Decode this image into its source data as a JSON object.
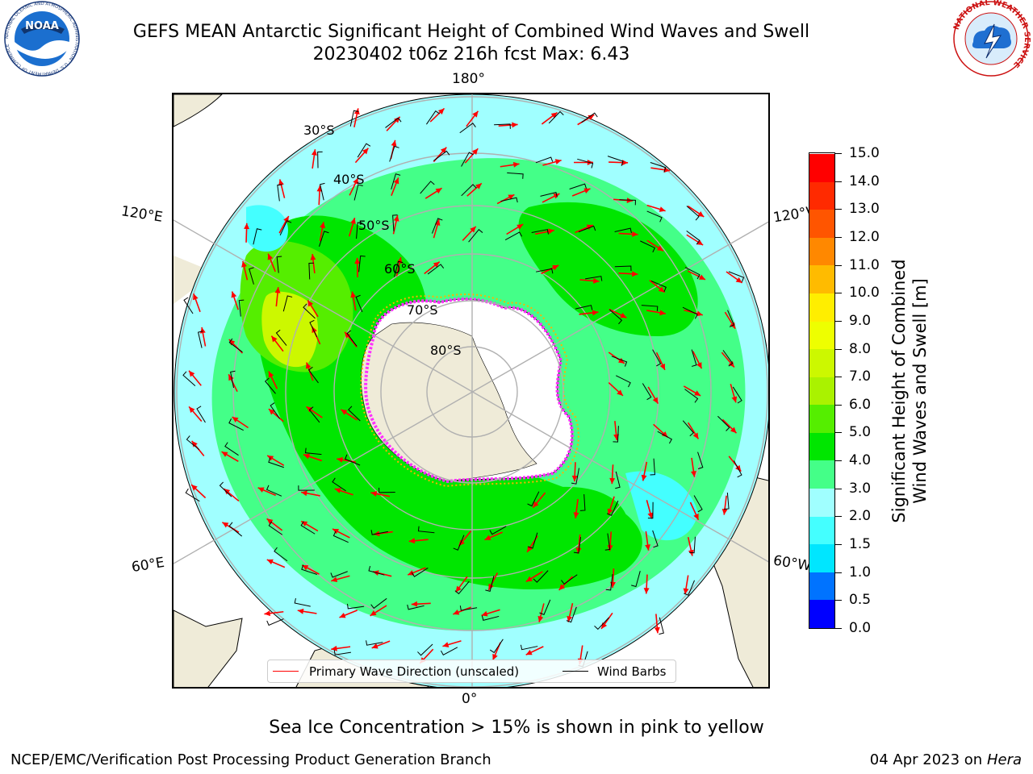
{
  "header": {
    "title_line1": "GEFS MEAN Antarctic Significant Height of Combined Wind Waves and Swell",
    "title_line2": "20230402 t06z 216h fcst   Max: 6.43"
  },
  "logos": {
    "noaa": {
      "text": "NOAA",
      "ring_text": "NATIONAL OCEANIC AND ATMOSPHERIC ADMINISTRATION · U.S. DEPARTMENT OF COMMERCE"
    },
    "nws": {
      "ring_text": "NATIONAL WEATHER SERVICE"
    }
  },
  "map": {
    "projection": "south-polar-stereographic",
    "longitude_labels": {
      "top": "180°",
      "bottom": "0°",
      "left_upper": "120°E",
      "left_lower": "60°E",
      "right_upper": "120°W",
      "right_lower": "60°W"
    },
    "latitude_labels": [
      "30°S",
      "40°S",
      "50°S",
      "60°S",
      "70°S",
      "80°S"
    ],
    "colors": {
      "land": "#efebd8",
      "antarctica": "#ffffff",
      "ocean_outside": "#ffffff",
      "gridline": "#b0b0b0",
      "sea_ice_pink": "#ff30ff",
      "sea_ice_yellow": "#ffb000",
      "arrow": "#ff0000",
      "barb": "#000000"
    }
  },
  "legend": {
    "primary_wave": {
      "label": "Primary Wave Direction (unscaled)",
      "color": "#ff0000"
    },
    "wind_barbs": {
      "label": "Wind Barbs",
      "color": "#000000"
    }
  },
  "colorbar": {
    "title_line1": "Significant Height of Combined",
    "title_line2": "Wind Waves and Swell [m]",
    "tick_labels": [
      "0.0",
      "0.5",
      "1.0",
      "1.5",
      "2.0",
      "3.0",
      "4.0",
      "5.0",
      "6.0",
      "7.0",
      "8.0",
      "9.0",
      "10.0",
      "11.0",
      "12.0",
      "13.0",
      "14.0",
      "15.0"
    ],
    "colors": [
      "#0000ff",
      "#0073ff",
      "#00e6ff",
      "#44ffff",
      "#a0ffff",
      "#44ff88",
      "#00e600",
      "#55ee00",
      "#aaf200",
      "#ccf800",
      "#eeff00",
      "#ffee00",
      "#ffbb00",
      "#ff8800",
      "#ff5500",
      "#ff2a00",
      "#ff0000"
    ]
  },
  "notes": {
    "sea_ice": "Sea Ice Concentration > 15% is shown in pink to yellow"
  },
  "footer": {
    "left": "NCEP/EMC/Verification Post Processing Product Generation Branch",
    "right_date": "04 Apr 2023 on ",
    "right_machine": "Hera"
  }
}
